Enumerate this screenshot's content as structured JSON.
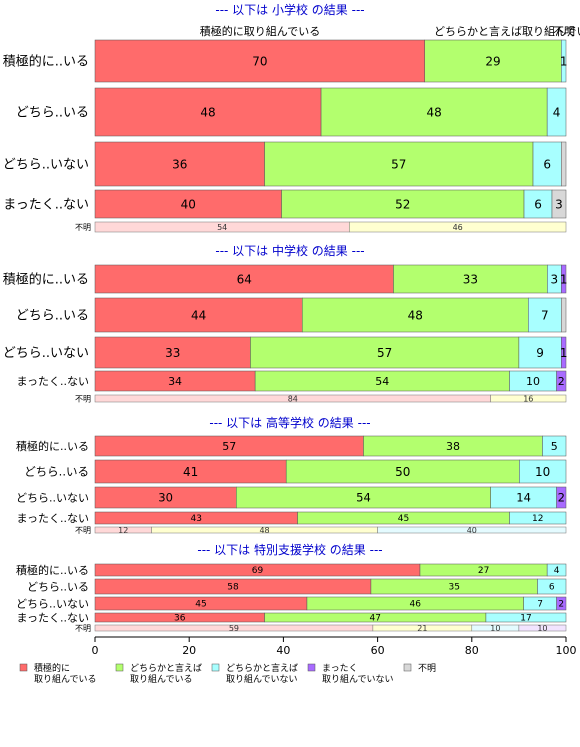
{
  "chart_data": {
    "type": "bar",
    "orientation": "horizontal",
    "stacked": "percent",
    "xlim": [
      0,
      100
    ],
    "x_ticks": [
      "0",
      "20",
      "40",
      "60",
      "80",
      "100"
    ],
    "legend": {
      "placement": "bottom-left",
      "entries": [
        {
          "label": "積極的に\n取り組んでいる",
          "color": "#ff6b6b"
        },
        {
          "label": "どちらかと言えば\n取り組んでいる",
          "color": "#b3ff6e"
        },
        {
          "label": "どちらかと言えば\n取り組んでいない",
          "color": "#a8ffff"
        },
        {
          "label": "まったく\n取り組んでいない",
          "color": "#a86bff"
        },
        {
          "label": "不明",
          "color": "#d8d8d8"
        }
      ]
    },
    "colors": [
      "#ff6b6b",
      "#b3ff6e",
      "#a8ffff",
      "#a86bff",
      "#d8d8d8"
    ],
    "unknown_bar_colors": [
      "#ffd8d8",
      "#ffffd0",
      "#e4fbff",
      "#f2e4ff",
      "#ececec"
    ],
    "top_column_labels": [
      "積極的に取り組んでいる",
      "どちらかと言えば取り組んでいる",
      "不明"
    ],
    "panels": [
      {
        "title": "--- 以下は 小学校 の結果 ---",
        "rows": [
          {
            "label": "積極的に..いる",
            "values": [
              70,
              29,
              1,
              0,
              0
            ],
            "labels": [
              "70",
              "29",
              "1",
              "",
              ""
            ]
          },
          {
            "label": "どちら..いる",
            "values": [
              48,
              48,
              4,
              0,
              0
            ],
            "labels": [
              "48",
              "48",
              "4",
              "",
              ""
            ]
          },
          {
            "label": "どちら..いない",
            "values": [
              36,
              57,
              6,
              0,
              1
            ],
            "labels": [
              "36",
              "57",
              "6",
              "",
              ""
            ]
          },
          {
            "label": "まったく..ない",
            "values": [
              40,
              52,
              6,
              0,
              3
            ],
            "labels": [
              "40",
              "52",
              "6",
              "",
              "3"
            ]
          }
        ],
        "unknown": {
          "label": "不明",
          "values": [
            54,
            46
          ],
          "labels": [
            "54",
            "46"
          ]
        }
      },
      {
        "title": "--- 以下は 中学校 の結果 ---",
        "rows": [
          {
            "label": "積極的に..いる",
            "values": [
              64,
              33,
              3,
              1,
              0
            ],
            "labels": [
              "64",
              "33",
              "3",
              "1",
              ""
            ]
          },
          {
            "label": "どちら..いる",
            "values": [
              44,
              48,
              7,
              0,
              1
            ],
            "labels": [
              "44",
              "48",
              "7",
              "",
              ""
            ]
          },
          {
            "label": "どちら..いない",
            "values": [
              33,
              57,
              9,
              1,
              0
            ],
            "labels": [
              "33",
              "57",
              "9",
              "1",
              ""
            ]
          },
          {
            "label": "まったく..ない",
            "values": [
              34,
              54,
              10,
              2,
              0
            ],
            "labels": [
              "34",
              "54",
              "10",
              "2",
              ""
            ]
          }
        ],
        "unknown": {
          "label": "不明",
          "values": [
            84,
            16
          ],
          "labels": [
            "84",
            "16"
          ]
        }
      },
      {
        "title": "--- 以下は 高等学校 の結果 ---",
        "rows": [
          {
            "label": "積極的に..いる",
            "values": [
              57,
              38,
              5,
              0,
              0
            ],
            "labels": [
              "57",
              "38",
              "5",
              "",
              ""
            ]
          },
          {
            "label": "どちら..いる",
            "values": [
              41,
              50,
              10,
              0,
              0
            ],
            "labels": [
              "41",
              "50",
              "10",
              "",
              ""
            ]
          },
          {
            "label": "どちら..いない",
            "values": [
              30,
              54,
              14,
              2,
              0
            ],
            "labels": [
              "30",
              "54",
              "14",
              "2",
              ""
            ]
          },
          {
            "label": "まったく..ない",
            "values": [
              43,
              45,
              12,
              0,
              0
            ],
            "labels": [
              "43",
              "45",
              "12",
              "",
              ""
            ]
          }
        ],
        "unknown": {
          "label": "不明",
          "values": [
            12,
            48,
            40
          ],
          "labels": [
            "12",
            "48",
            "40"
          ]
        }
      },
      {
        "title": "--- 以下は 特別支援学校 の結果 ---",
        "rows": [
          {
            "label": "積極的に..いる",
            "values": [
              69,
              27,
              4,
              0,
              0
            ],
            "labels": [
              "69",
              "27",
              "4",
              "",
              ""
            ]
          },
          {
            "label": "どちら..いる",
            "values": [
              58,
              35,
              6,
              0,
              0
            ],
            "labels": [
              "58",
              "35",
              "6",
              "",
              ""
            ]
          },
          {
            "label": "どちら..いない",
            "values": [
              45,
              46,
              7,
              2,
              0
            ],
            "labels": [
              "45",
              "46",
              "7",
              "2",
              ""
            ]
          },
          {
            "label": "まったく..ない",
            "values": [
              36,
              47,
              17,
              0,
              0
            ],
            "labels": [
              "36",
              "47",
              "17",
              "",
              ""
            ]
          }
        ],
        "unknown": {
          "label": "不明",
          "values": [
            59,
            21,
            10,
            10
          ],
          "labels": [
            "59",
            "21",
            "10",
            "10"
          ]
        }
      }
    ]
  }
}
